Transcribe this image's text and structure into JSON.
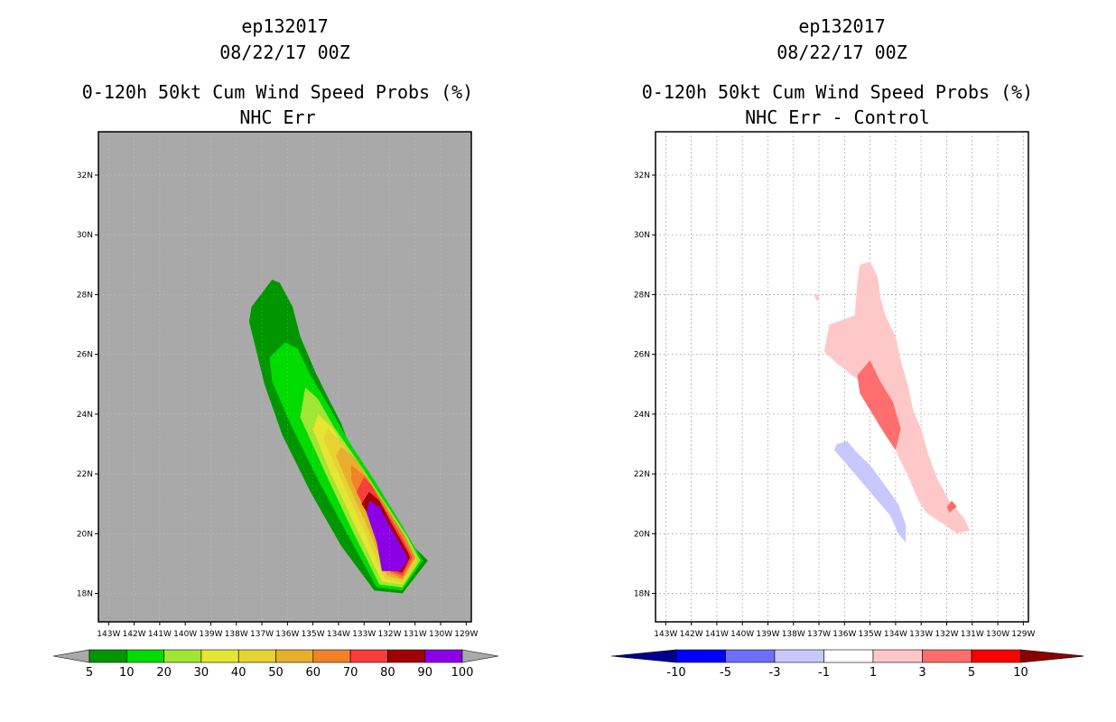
{
  "chart_data": [
    {
      "type": "heatmap",
      "title": "ep132017",
      "subtitle": "08/22/17 00Z",
      "product": "0-120h 50kt Cum Wind Speed Probs (%)",
      "panel": "NHC Err",
      "background_color": "#a9a9a9",
      "grid": false,
      "x_tick_labels": [
        "143W",
        "142W",
        "141W",
        "140W",
        "139W",
        "138W",
        "137W",
        "136W",
        "135W",
        "134W",
        "133W",
        "132W",
        "131W",
        "130W",
        "129W"
      ],
      "x_tick_values": [
        -143,
        -142,
        -141,
        -140,
        -139,
        -138,
        -137,
        -136,
        -135,
        -134,
        -133,
        -132,
        -131,
        -130,
        -129
      ],
      "y_tick_labels": [
        "18N",
        "20N",
        "22N",
        "24N",
        "26N",
        "28N",
        "30N",
        "32N"
      ],
      "y_tick_values": [
        18,
        20,
        22,
        24,
        26,
        28,
        30,
        32
      ],
      "xlim": [
        -143.4,
        -128.8
      ],
      "ylim": [
        17.05,
        33.45
      ],
      "colorbar": {
        "labels": [
          "5",
          "10",
          "20",
          "30",
          "40",
          "50",
          "60",
          "70",
          "80",
          "90",
          "100"
        ],
        "colors": [
          "#009600",
          "#00dc00",
          "#a0e632",
          "#e6e632",
          "#e6d232",
          "#e6af2d",
          "#f08228",
          "#fa3c3c",
          "#a00000",
          "#8c00e6"
        ],
        "extend_color": "#a9a9a9"
      },
      "contours": [
        {
          "level": 5,
          "color": "#009600",
          "points": [
            [
              -136.6,
              28.5
            ],
            [
              -136.3,
              28.4
            ],
            [
              -135.8,
              27.6
            ],
            [
              -135.5,
              26.6
            ],
            [
              -134.9,
              25.4
            ],
            [
              -134.5,
              24.7
            ],
            [
              -133.9,
              23.7
            ],
            [
              -133.5,
              22.8
            ],
            [
              -132.7,
              21.6
            ],
            [
              -131.9,
              20.6
            ],
            [
              -131.1,
              19.6
            ],
            [
              -130.5,
              19.1
            ],
            [
              -131.5,
              18.0
            ],
            [
              -132.6,
              18.1
            ],
            [
              -133.9,
              19.6
            ],
            [
              -135.1,
              21.4
            ],
            [
              -136.2,
              23.3
            ],
            [
              -136.9,
              25.0
            ],
            [
              -137.5,
              27.1
            ],
            [
              -137.4,
              27.6
            ]
          ]
        },
        {
          "level": 10,
          "color": "#00dc00",
          "points": [
            [
              -136.1,
              26.4
            ],
            [
              -135.6,
              26.2
            ],
            [
              -135.1,
              25.3
            ],
            [
              -134.4,
              24.3
            ],
            [
              -133.6,
              23.1
            ],
            [
              -132.6,
              21.8
            ],
            [
              -131.6,
              20.4
            ],
            [
              -130.7,
              19.1
            ],
            [
              -131.5,
              18.1
            ],
            [
              -132.5,
              18.2
            ],
            [
              -133.6,
              19.9
            ],
            [
              -134.8,
              21.8
            ],
            [
              -135.9,
              23.7
            ],
            [
              -136.6,
              25.1
            ],
            [
              -136.7,
              25.9
            ]
          ]
        },
        {
          "level": 20,
          "color": "#a0e632",
          "points": [
            [
              -135.3,
              24.9
            ],
            [
              -134.8,
              24.5
            ],
            [
              -134.2,
              23.6
            ],
            [
              -133.3,
              22.5
            ],
            [
              -132.3,
              21.2
            ],
            [
              -131.3,
              19.9
            ],
            [
              -130.8,
              19.1
            ],
            [
              -131.5,
              18.2
            ],
            [
              -132.4,
              18.3
            ],
            [
              -133.4,
              20.0
            ],
            [
              -134.5,
              22.0
            ],
            [
              -135.5,
              23.9
            ]
          ]
        },
        {
          "level": 30,
          "color": "#e6e632",
          "points": [
            [
              -134.8,
              24.0
            ],
            [
              -134.2,
              23.5
            ],
            [
              -133.6,
              22.6
            ],
            [
              -132.8,
              21.6
            ],
            [
              -131.8,
              20.3
            ],
            [
              -130.9,
              19.1
            ],
            [
              -131.5,
              18.3
            ],
            [
              -132.3,
              18.4
            ],
            [
              -133.2,
              20.0
            ],
            [
              -134.3,
              22.0
            ],
            [
              -135.0,
              23.5
            ]
          ]
        },
        {
          "level": 40,
          "color": "#e6d232",
          "points": [
            [
              -134.4,
              23.5
            ],
            [
              -133.8,
              23.0
            ],
            [
              -133.2,
              22.2
            ],
            [
              -132.4,
              21.2
            ],
            [
              -131.5,
              20.0
            ],
            [
              -130.9,
              19.1
            ],
            [
              -131.5,
              18.35
            ],
            [
              -132.2,
              18.5
            ],
            [
              -133.0,
              20.1
            ],
            [
              -134.0,
              22.0
            ],
            [
              -134.6,
              23.2
            ]
          ]
        },
        {
          "level": 50,
          "color": "#e6af2d",
          "points": [
            [
              -133.9,
              22.9
            ],
            [
              -133.3,
              22.5
            ],
            [
              -132.7,
              21.6
            ],
            [
              -131.8,
              20.4
            ],
            [
              -131.0,
              19.2
            ],
            [
              -131.5,
              18.45
            ],
            [
              -132.1,
              18.6
            ],
            [
              -132.9,
              20.3
            ],
            [
              -133.7,
              21.8
            ],
            [
              -134.1,
              22.6
            ]
          ]
        },
        {
          "level": 60,
          "color": "#f08228",
          "points": [
            [
              -133.5,
              22.3
            ],
            [
              -132.9,
              21.9
            ],
            [
              -132.2,
              21.0
            ],
            [
              -131.4,
              19.9
            ],
            [
              -131.0,
              19.2
            ],
            [
              -131.5,
              18.5
            ],
            [
              -132.0,
              18.7
            ],
            [
              -132.8,
              20.5
            ],
            [
              -133.5,
              21.8
            ]
          ]
        },
        {
          "level": 70,
          "color": "#fa3c3c",
          "points": [
            [
              -133.0,
              21.9
            ],
            [
              -132.7,
              21.6
            ],
            [
              -132.3,
              21.0
            ],
            [
              -131.6,
              20.0
            ],
            [
              -131.1,
              19.2
            ],
            [
              -131.5,
              18.6
            ],
            [
              -132.0,
              18.75
            ],
            [
              -132.7,
              20.4
            ],
            [
              -133.3,
              21.4
            ]
          ]
        },
        {
          "level": 80,
          "color": "#a00000",
          "points": [
            [
              -132.8,
              21.4
            ],
            [
              -132.4,
              21.1
            ],
            [
              -131.9,
              20.3
            ],
            [
              -131.3,
              19.4
            ],
            [
              -131.2,
              19.2
            ],
            [
              -131.5,
              18.7
            ],
            [
              -132.0,
              18.8
            ],
            [
              -132.5,
              20.2
            ],
            [
              -133.1,
              21.0
            ]
          ]
        },
        {
          "level": 90,
          "color": "#8c00e6",
          "points": [
            [
              -132.8,
              21.1
            ],
            [
              -132.4,
              20.9
            ],
            [
              -131.9,
              20.1
            ],
            [
              -131.35,
              19.3
            ],
            [
              -131.3,
              19.1
            ],
            [
              -131.6,
              18.75
            ],
            [
              -132.3,
              18.75
            ],
            [
              -132.5,
              19.7
            ],
            [
              -132.9,
              20.7
            ]
          ]
        }
      ]
    },
    {
      "type": "heatmap",
      "title": "ep132017",
      "subtitle": "08/22/17 00Z",
      "product": "0-120h 50kt Cum Wind Speed Probs (%)",
      "panel": "NHC Err - Control",
      "background_color": "#ffffff",
      "grid": true,
      "x_tick_labels": [
        "143W",
        "142W",
        "141W",
        "140W",
        "139W",
        "138W",
        "137W",
        "136W",
        "135W",
        "134W",
        "133W",
        "132W",
        "131W",
        "130W",
        "129W"
      ],
      "x_tick_values": [
        -143,
        -142,
        -141,
        -140,
        -139,
        -138,
        -137,
        -136,
        -135,
        -134,
        -133,
        -132,
        -131,
        -130,
        -129
      ],
      "y_tick_labels": [
        "18N",
        "20N",
        "22N",
        "24N",
        "26N",
        "28N",
        "30N",
        "32N"
      ],
      "y_tick_values": [
        18,
        20,
        22,
        24,
        26,
        28,
        30,
        32
      ],
      "xlim": [
        -143.4,
        -128.8
      ],
      "ylim": [
        17.05,
        33.45
      ],
      "colorbar": {
        "labels": [
          "-10",
          "-5",
          "-3",
          "-1",
          "1",
          "3",
          "5",
          "10"
        ],
        "colors": [
          "#0000ff",
          "#6e6eff",
          "#c8c8ff",
          "#ffffff",
          "#ffc8c8",
          "#ff6e6e",
          "#ff0000"
        ],
        "extend_low_color": "#00008c",
        "extend_high_color": "#8c0000"
      },
      "contours": [
        {
          "level": 1,
          "color": "#ffc8c8",
          "points": [
            [
              -135.4,
              29.0
            ],
            [
              -135.0,
              29.1
            ],
            [
              -134.7,
              28.6
            ],
            [
              -134.6,
              27.9
            ],
            [
              -134.4,
              27.3
            ],
            [
              -134.0,
              26.6
            ],
            [
              -133.8,
              25.8
            ],
            [
              -133.5,
              24.9
            ],
            [
              -133.3,
              24.1
            ],
            [
              -133.0,
              23.5
            ],
            [
              -132.7,
              22.6
            ],
            [
              -132.4,
              21.9
            ],
            [
              -131.9,
              21.1
            ],
            [
              -131.3,
              20.5
            ],
            [
              -131.1,
              20.1
            ],
            [
              -131.6,
              20.0
            ],
            [
              -132.1,
              20.3
            ],
            [
              -132.8,
              20.7
            ],
            [
              -133.1,
              21.1
            ],
            [
              -133.5,
              21.9
            ],
            [
              -133.9,
              22.6
            ],
            [
              -134.2,
              23.3
            ],
            [
              -134.8,
              24.4
            ],
            [
              -135.4,
              25.1
            ],
            [
              -136.3,
              25.7
            ],
            [
              -136.8,
              26.1
            ],
            [
              -136.6,
              27.0
            ],
            [
              -135.6,
              27.3
            ],
            [
              -135.5,
              28.4
            ]
          ]
        },
        {
          "level": 3,
          "color": "#ff6e6e",
          "points": [
            [
              -135.0,
              25.8
            ],
            [
              -134.6,
              25.1
            ],
            [
              -134.1,
              24.4
            ],
            [
              -133.8,
              23.5
            ],
            [
              -134.0,
              22.8
            ],
            [
              -134.4,
              23.3
            ],
            [
              -134.9,
              24.0
            ],
            [
              -135.4,
              24.7
            ],
            [
              -135.5,
              25.3
            ]
          ]
        },
        {
          "level": 3,
          "color": "#ff6e6e",
          "points": [
            [
              -132.0,
              20.9
            ],
            [
              -131.8,
              21.1
            ],
            [
              -131.6,
              20.9
            ],
            [
              -131.9,
              20.7
            ]
          ]
        },
        {
          "level": 1,
          "color": "#ffc8c8",
          "points": [
            [
              -137.2,
              28.0
            ],
            [
              -137.0,
              28.0
            ],
            [
              -137.0,
              27.8
            ],
            [
              -137.1,
              27.8
            ]
          ]
        },
        {
          "level": -1,
          "color": "#c8c8ff",
          "points": [
            [
              -136.3,
              23.0
            ],
            [
              -135.9,
              23.1
            ],
            [
              -135.5,
              22.7
            ],
            [
              -135.0,
              22.3
            ],
            [
              -134.4,
              21.6
            ],
            [
              -133.9,
              21.0
            ],
            [
              -133.6,
              20.3
            ],
            [
              -133.6,
              19.7
            ],
            [
              -133.9,
              20.0
            ],
            [
              -134.2,
              20.6
            ],
            [
              -134.9,
              21.3
            ],
            [
              -135.5,
              21.9
            ],
            [
              -136.0,
              22.4
            ],
            [
              -136.4,
              22.8
            ]
          ]
        }
      ]
    }
  ]
}
